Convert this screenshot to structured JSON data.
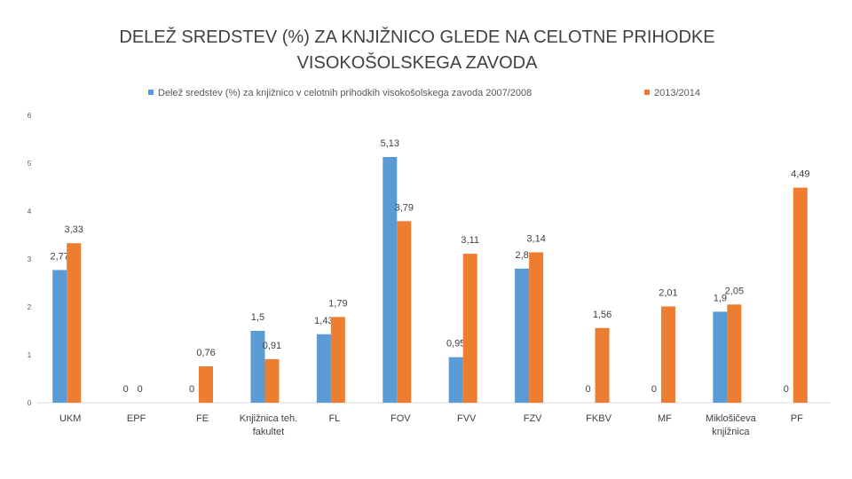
{
  "chart_data": {
    "type": "bar",
    "title_lines": [
      "DELEŽ SREDSTEV (%) ZA KNJIŽNICO GLEDE NA CELOTNE PRIHODKE",
      "VISOKOŠOLSKEGA ZAVODA"
    ],
    "categories": [
      "UKM",
      "EPF",
      "FE",
      "Knjižnica teh. fakultet",
      "FL",
      "FOV",
      "FVV",
      "FZV",
      "FKBV",
      "MF",
      "Miklošičeva knjižnica",
      "PF"
    ],
    "series": [
      {
        "name": "Delež sredstev (%) za knjižnico v celotnih prihodkih visokošolskega zavoda 2007/2008",
        "color": "#5b9bd5",
        "values": [
          2.77,
          0,
          0,
          1.5,
          1.43,
          5.13,
          0.95,
          2.8,
          0,
          0,
          1.9,
          0
        ],
        "labels": [
          "2,77",
          "0",
          "0",
          "1,5",
          "1,43",
          "5,13",
          "0,95",
          "2,8",
          "0",
          "0",
          "1,9",
          "0"
        ]
      },
      {
        "name": "2013/2014",
        "color": "#ed7d31",
        "values": [
          3.33,
          0,
          0.76,
          0.91,
          1.79,
          3.79,
          3.11,
          3.14,
          1.56,
          2.01,
          2.05,
          4.49
        ],
        "labels": [
          "3,33",
          "0",
          "0,76",
          "0,91",
          "1,79",
          "3,79",
          "3,11",
          "3,14",
          "1,56",
          "2,01",
          "2,05",
          "4,49"
        ]
      }
    ],
    "y_ticks": [
      "0",
      "1",
      "2",
      "3",
      "4",
      "5",
      "6"
    ],
    "ylim": [
      0,
      6
    ],
    "grid": false,
    "legend_position": "top"
  }
}
